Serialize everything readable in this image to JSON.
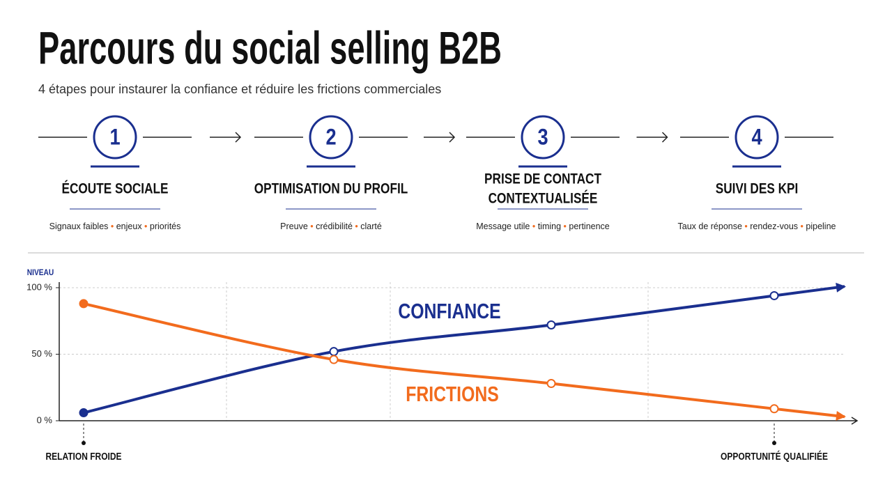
{
  "header": {
    "title": "Parcours du social selling B2B",
    "subtitle": "4 étapes pour instaurer la confiance et réduire les frictions commerciales"
  },
  "steps": [
    {
      "number": "1",
      "title": [
        "ÉCOUTE SOCIALE"
      ],
      "keywords": [
        "Signaux faibles",
        "enjeux",
        "priorités"
      ]
    },
    {
      "number": "2",
      "title": [
        "OPTIMISATION DU PROFIL"
      ],
      "keywords": [
        "Preuve",
        "crédibilité",
        "clarté"
      ]
    },
    {
      "number": "3",
      "title": [
        "PRISE DE CONTACT",
        "CONTEXTUALISÉE"
      ],
      "keywords": [
        "Message utile",
        "timing",
        "pertinence"
      ]
    },
    {
      "number": "4",
      "title": [
        "SUIVI DES KPI"
      ],
      "keywords": [
        "Taux de réponse",
        "rendez-vous",
        "pipeline"
      ]
    }
  ],
  "chart_data": {
    "type": "line",
    "y_label": "NIVEAU",
    "categories": [
      "RELATION FROIDE",
      null,
      null,
      "OPPORTUNITÉ QUALIFIÉE"
    ],
    "series": [
      {
        "name": "CONFIANCE",
        "color": "#1a2f8f",
        "values": [
          6,
          52,
          72,
          94
        ]
      },
      {
        "name": "FRICTIONS",
        "color": "#f26b1d",
        "values": [
          88,
          46,
          28,
          9
        ]
      }
    ],
    "ylim": [
      0,
      100
    ],
    "yticks": [
      {
        "value": 0,
        "label": "0 %"
      },
      {
        "value": 50,
        "label": "50 %"
      },
      {
        "value": 100,
        "label": "100 %"
      }
    ],
    "grid": true
  }
}
